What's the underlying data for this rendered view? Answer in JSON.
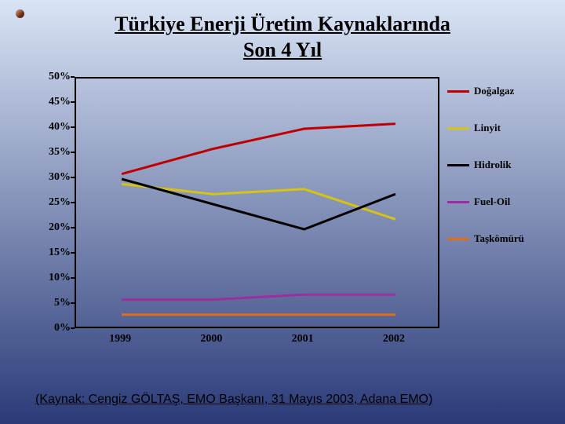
{
  "background": {
    "top": "#d9e4f5",
    "bottom": "#2a3a78"
  },
  "title_line1": "Türkiye Enerji Üretim Kaynaklarında",
  "title_line2": "Son 4 Yıl",
  "source": "(Kaynak: Cengiz GÖLTAŞ, EMO Başkanı, 31 Mayıs 2003, Adana EMO)",
  "chart": {
    "type": "line",
    "xcategories": [
      "1999",
      "2000",
      "2001",
      "2002"
    ],
    "ylim": [
      0,
      50
    ],
    "ytick_step": 5,
    "yticks": [
      "0%",
      "5%",
      "10%",
      "15%",
      "20%",
      "25%",
      "30%",
      "35%",
      "40%",
      "45%",
      "50%"
    ],
    "line_width": 3,
    "plot_border": "#000000",
    "series": [
      {
        "name": "Doğalgaz",
        "color": "#c00000",
        "values": [
          31,
          36,
          40,
          41
        ]
      },
      {
        "name": "Linyit",
        "color": "#d6c312",
        "values": [
          29,
          27,
          28,
          22
        ]
      },
      {
        "name": "Hidrolik",
        "color": "#000000",
        "values": [
          30,
          25,
          20,
          27
        ]
      },
      {
        "name": "Fuel-Oil",
        "color": "#9b2fa0",
        "values": [
          6,
          6,
          7,
          7
        ]
      },
      {
        "name": "Taşkömürü",
        "color": "#de6f1d",
        "values": [
          3,
          3,
          3,
          3
        ]
      }
    ]
  }
}
